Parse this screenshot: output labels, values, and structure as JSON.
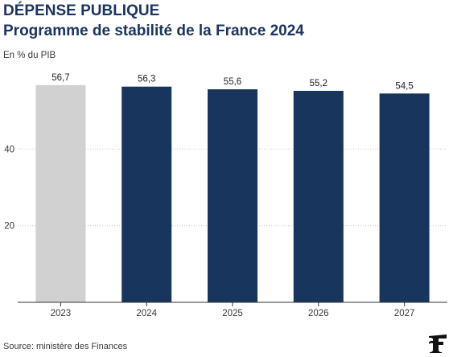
{
  "header": {
    "title": "DÉPENSE PUBLIQUE",
    "subtitle": "Programme de stabilité de la France 2024",
    "unit": "En % du PIB"
  },
  "footer": {
    "source": "Source: ministère des Finances"
  },
  "colors": {
    "highlight": "#d1d1d1",
    "bar": "#17355d",
    "grid": "#c8c8c8",
    "axis": "#333333",
    "text": "#3a3a3a"
  },
  "chart_data": {
    "type": "bar",
    "categories": [
      "2023",
      "2024",
      "2025",
      "2026",
      "2027"
    ],
    "values": [
      56.7,
      56.3,
      55.6,
      55.2,
      54.5
    ],
    "value_labels": [
      "56,7",
      "56,3",
      "55,6",
      "55,2",
      "54,5"
    ],
    "highlight_index": 0,
    "yticks": [
      20,
      40
    ],
    "ylim": [
      0,
      58
    ],
    "title": "DÉPENSE PUBLIQUE",
    "subtitle": "Programme de stabilité de la France 2024",
    "ylabel": "En % du PIB",
    "grid": true,
    "legend": "none"
  }
}
